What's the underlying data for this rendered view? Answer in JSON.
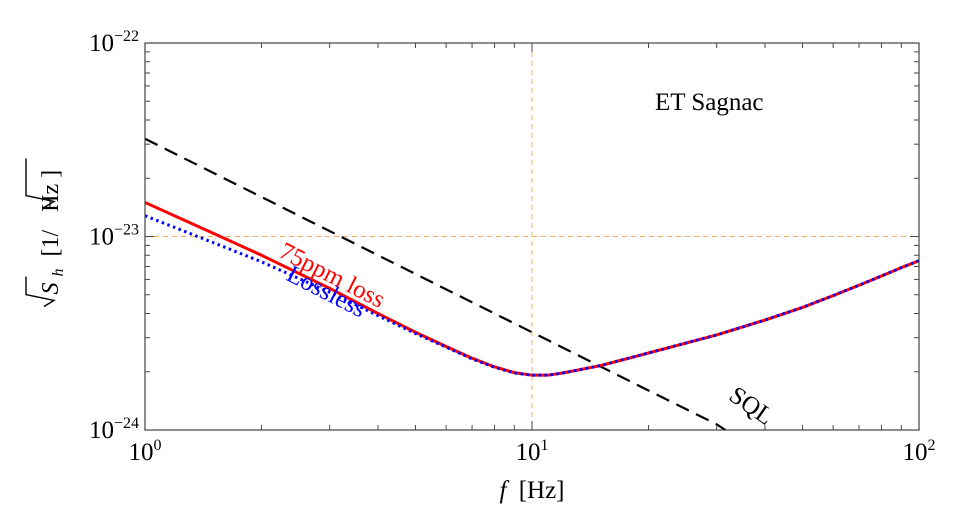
{
  "chart_data": {
    "type": "line",
    "title": "ET Sagnac",
    "xlabel": {
      "var": "f",
      "unit": "[Hz]"
    },
    "ylabel": {
      "radicand": "S",
      "subscript": "h",
      "unit_open": "[1/",
      "unit_radicand": "Hz",
      "unit_close": "]"
    },
    "xscale": "log",
    "yscale": "log",
    "xlim": [
      1,
      100
    ],
    "ylim": [
      1e-24,
      1e-22
    ],
    "x_ticks": [
      {
        "value": 1,
        "base": "10",
        "exp": "0"
      },
      {
        "value": 10,
        "base": "10",
        "exp": "1"
      },
      {
        "value": 100,
        "base": "10",
        "exp": "2"
      }
    ],
    "y_ticks": [
      {
        "value": 1e-24,
        "base": "10",
        "exp": "−24"
      },
      {
        "value": 1e-23,
        "base": "10",
        "exp": "−23"
      },
      {
        "value": 1e-22,
        "base": "10",
        "exp": "−22"
      }
    ],
    "gridlines": {
      "x": [
        10
      ],
      "y": [
        1e-23
      ]
    },
    "series": [
      {
        "name": "SQL",
        "color": "#000000",
        "style": "dashed",
        "x": [
          1,
          2,
          5,
          10,
          20,
          30,
          31.6
        ],
        "y": [
          3.2e-23,
          1.6e-23,
          6.4e-24,
          3.2e-24,
          1.6e-24,
          1.07e-24,
          1e-24
        ]
      },
      {
        "name": "75ppm loss",
        "color": "#ff0000",
        "style": "solid",
        "x": [
          1,
          1.5,
          2,
          3,
          4,
          5,
          6,
          7,
          8,
          9,
          10,
          11,
          12,
          15,
          20,
          30,
          40,
          50,
          60,
          70,
          80,
          90,
          100
        ],
        "y": [
          1.5e-23,
          1.04e-23,
          8e-24,
          5.4e-24,
          4e-24,
          3.2e-24,
          2.7e-24,
          2.35e-24,
          2.12e-24,
          1.98e-24,
          1.92e-24,
          1.92e-24,
          1.97e-24,
          2.15e-24,
          2.5e-24,
          3.1e-24,
          3.7e-24,
          4.3e-24,
          4.95e-24,
          5.6e-24,
          6.25e-24,
          6.9e-24,
          7.5e-24
        ]
      },
      {
        "name": "Lossless",
        "color": "#0000ff",
        "style": "dotted",
        "x": [
          1,
          1.5,
          2,
          3,
          4,
          5,
          6,
          7,
          8,
          9,
          10,
          11,
          12,
          15,
          20,
          30,
          40,
          50,
          60,
          70,
          80,
          90,
          100
        ],
        "y": [
          1.28e-23,
          9.3e-24,
          7.4e-24,
          5.15e-24,
          3.9e-24,
          3.15e-24,
          2.68e-24,
          2.33e-24,
          2.11e-24,
          1.97e-24,
          1.92e-24,
          1.92e-24,
          1.97e-24,
          2.15e-24,
          2.5e-24,
          3.1e-24,
          3.7e-24,
          4.3e-24,
          4.95e-24,
          5.6e-24,
          6.25e-24,
          6.9e-24,
          7.5e-24
        ]
      }
    ],
    "annotations": [
      {
        "text": "SQL",
        "x": 32,
        "y": 1.45e-24,
        "color": "#000000",
        "angle": 35
      },
      {
        "text": "75ppm loss",
        "x": 2.2,
        "y": 7.9e-24,
        "color": "#ff0000",
        "angle": 27
      },
      {
        "text": "Lossless",
        "x": 2.3,
        "y": 6e-24,
        "color": "#0000ff",
        "angle": 27
      }
    ],
    "grid": true,
    "grid_color": "#f0b060",
    "legend": "none"
  }
}
